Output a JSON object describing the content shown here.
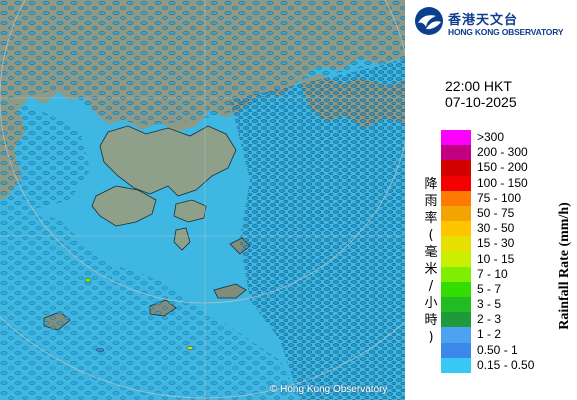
{
  "organization": {
    "name_zh": "香港天文台",
    "name_en": "HONG KONG OBSERVATORY",
    "logo_icon": "hko-emblem-icon"
  },
  "observation": {
    "time": "22:00 HKT",
    "date": "07-10-2025"
  },
  "legend": {
    "title_en": "Rainfall Rate (mm/h)",
    "title_zh": [
      "降",
      "雨",
      "率",
      "(",
      "毫",
      "米",
      "/",
      "小",
      "時",
      ")"
    ],
    "classes": [
      {
        "label": ">300",
        "color": "#ff00ff"
      },
      {
        "label": "200 - 300",
        "color": "#c0007f"
      },
      {
        "label": "150 - 200",
        "color": "#d20000"
      },
      {
        "label": "100 - 150",
        "color": "#f50000"
      },
      {
        "label": "75 - 100",
        "color": "#ff7a00"
      },
      {
        "label": "50 - 75",
        "color": "#f4a400"
      },
      {
        "label": "30 - 50",
        "color": "#ffc600"
      },
      {
        "label": "15 - 30",
        "color": "#e5e000"
      },
      {
        "label": "10 - 15",
        "color": "#c8f000"
      },
      {
        "label": "7 - 10",
        "color": "#7fee00"
      },
      {
        "label": "5 - 7",
        "color": "#33dd00"
      },
      {
        "label": "3 - 5",
        "color": "#22bb22"
      },
      {
        "label": "2 - 3",
        "color": "#1e9a3c"
      },
      {
        "label": "1 - 2",
        "color": "#4da3f2"
      },
      {
        "label": "0.50 - 1",
        "color": "#3c88e8"
      },
      {
        "label": "0.15 - 0.50",
        "color": "#38c8f4"
      }
    ]
  },
  "map": {
    "sea_color": "#3fb7e3",
    "land_color": "#8c9a86",
    "echo_color": "#33aee0",
    "copyright": "© Hong Kong Observatory"
  }
}
